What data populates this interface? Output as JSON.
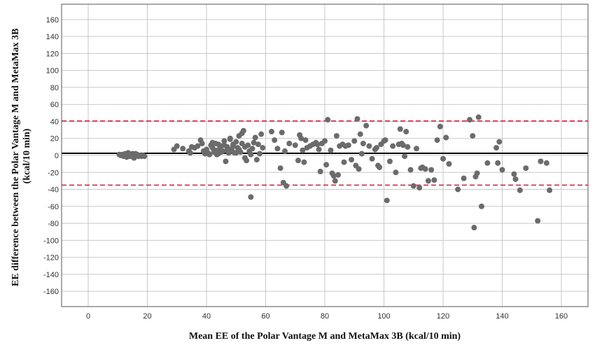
{
  "chart_data": {
    "type": "scatter",
    "title": "",
    "xlabel": "Mean EE of the Polar Vantage M and MetaMax 3B (kcal/10 min)",
    "ylabel_line1": "EE difference between the Polar Vantage M and MetaMax 3B",
    "ylabel_line2": "(kcal/10 min)",
    "xlim": [
      -9,
      169
    ],
    "ylim": [
      -178,
      178
    ],
    "xticks": [
      0,
      20,
      40,
      60,
      80,
      100,
      120,
      140,
      160
    ],
    "yticks": [
      -160,
      -140,
      -120,
      -100,
      -80,
      -60,
      -40,
      -20,
      0,
      20,
      40,
      60,
      80,
      100,
      120,
      140,
      160
    ],
    "grid": true,
    "legend": "none",
    "reference_lines": [
      {
        "kind": "mean_bias",
        "y": 2.5,
        "color": "#000000",
        "style": "solid"
      },
      {
        "kind": "upper_loa",
        "y": 40.5,
        "color": "#d6264f",
        "style": "dashed"
      },
      {
        "kind": "lower_loa",
        "y": -35,
        "color": "#d6264f",
        "style": "dashed"
      }
    ],
    "colors": {
      "points": "#6b6b6b",
      "grid": "#c8c8c8",
      "frame": "#555555"
    },
    "points": [
      [
        10.5,
        1
      ],
      [
        11,
        0
      ],
      [
        11.5,
        1
      ],
      [
        12,
        -1
      ],
      [
        12.5,
        2
      ],
      [
        13,
        0
      ],
      [
        13.5,
        3
      ],
      [
        14,
        1
      ],
      [
        14.5,
        -1
      ],
      [
        15,
        2
      ],
      [
        15.5,
        -3
      ],
      [
        16,
        0
      ],
      [
        16.5,
        1
      ],
      [
        17,
        -1
      ],
      [
        17.5,
        0
      ],
      [
        18,
        -1
      ],
      [
        18.5,
        0
      ],
      [
        19,
        -1
      ],
      [
        13,
        -2
      ],
      [
        15,
        1
      ],
      [
        16,
        2
      ],
      [
        12,
        1
      ],
      [
        14,
        -1
      ],
      [
        17,
        0
      ],
      [
        29,
        7
      ],
      [
        30,
        11
      ],
      [
        32,
        8
      ],
      [
        34,
        5
      ],
      [
        34.5,
        3
      ],
      [
        35,
        10
      ],
      [
        36,
        9
      ],
      [
        37,
        11
      ],
      [
        38,
        18
      ],
      [
        38.5,
        14
      ],
      [
        39,
        5
      ],
      [
        39.5,
        2
      ],
      [
        40,
        7
      ],
      [
        40.5,
        3
      ],
      [
        41,
        1
      ],
      [
        41.5,
        12
      ],
      [
        42,
        9
      ],
      [
        42.5,
        4
      ],
      [
        43,
        6
      ],
      [
        43.5,
        1
      ],
      [
        44,
        13
      ],
      [
        44.5,
        8
      ],
      [
        45,
        11
      ],
      [
        45.5,
        5
      ],
      [
        46,
        17
      ],
      [
        46.5,
        -7
      ],
      [
        47,
        10
      ],
      [
        47.5,
        3
      ],
      [
        48,
        19
      ],
      [
        48.5,
        7
      ],
      [
        49,
        13
      ],
      [
        49.5,
        3
      ],
      [
        50,
        16
      ],
      [
        50.5,
        9
      ],
      [
        51,
        23
      ],
      [
        51.5,
        4
      ],
      [
        52,
        26
      ],
      [
        52.5,
        29
      ],
      [
        53,
        -3
      ],
      [
        53.5,
        -6
      ],
      [
        54,
        12
      ],
      [
        54.5,
        5
      ],
      [
        55,
        -49
      ],
      [
        55.5,
        8
      ],
      [
        56,
        15
      ],
      [
        56.5,
        21
      ],
      [
        57,
        -5
      ],
      [
        57.5,
        13
      ],
      [
        58,
        2
      ],
      [
        58.5,
        25
      ],
      [
        59,
        9
      ],
      [
        44,
        2
      ],
      [
        46,
        12
      ],
      [
        48,
        20
      ],
      [
        50,
        3
      ],
      [
        52,
        14
      ],
      [
        42,
        15
      ],
      [
        47,
        6
      ],
      [
        49,
        11
      ],
      [
        53,
        10
      ],
      [
        43,
        14
      ],
      [
        45,
        4
      ],
      [
        51,
        7
      ],
      [
        55,
        1
      ],
      [
        62,
        28
      ],
      [
        63,
        18
      ],
      [
        64,
        8
      ],
      [
        65,
        -15
      ],
      [
        65.5,
        27
      ],
      [
        66,
        -32
      ],
      [
        66.5,
        5
      ],
      [
        67,
        -36
      ],
      [
        68,
        14
      ],
      [
        70,
        12
      ],
      [
        71,
        -6
      ],
      [
        71.5,
        24
      ],
      [
        72,
        20
      ],
      [
        72.5,
        6
      ],
      [
        73,
        -8
      ],
      [
        73.5,
        18
      ],
      [
        74,
        9
      ],
      [
        75,
        11
      ],
      [
        76,
        13
      ],
      [
        77,
        15
      ],
      [
        77.5,
        13
      ],
      [
        78,
        7
      ],
      [
        78.5,
        -19
      ],
      [
        79,
        14
      ],
      [
        80,
        17
      ],
      [
        80.5,
        -11
      ],
      [
        81,
        42
      ],
      [
        82,
        6
      ],
      [
        82.5,
        -21
      ],
      [
        83,
        -24
      ],
      [
        83.5,
        -30
      ],
      [
        84,
        23
      ],
      [
        84.5,
        -23
      ],
      [
        85,
        11
      ],
      [
        86,
        13
      ],
      [
        86.5,
        -8
      ],
      [
        87,
        11
      ],
      [
        88,
        12
      ],
      [
        89,
        -5
      ],
      [
        90,
        17
      ],
      [
        90.5,
        -12
      ],
      [
        91,
        43
      ],
      [
        91.5,
        -16
      ],
      [
        92,
        25
      ],
      [
        92.5,
        2
      ],
      [
        93,
        14
      ],
      [
        94,
        35
      ],
      [
        95,
        11
      ],
      [
        96,
        -4
      ],
      [
        97,
        7
      ],
      [
        97.5,
        9
      ],
      [
        98,
        -12
      ],
      [
        98.5,
        -14
      ],
      [
        99,
        13
      ],
      [
        100,
        17
      ],
      [
        100.5,
        18
      ],
      [
        101,
        -53
      ],
      [
        102,
        -7
      ],
      [
        103,
        11
      ],
      [
        104,
        -20
      ],
      [
        105,
        13
      ],
      [
        105.5,
        31
      ],
      [
        106,
        14
      ],
      [
        106.5,
        12
      ],
      [
        107,
        -1
      ],
      [
        107.5,
        28
      ],
      [
        108,
        10
      ],
      [
        109,
        -17
      ],
      [
        110,
        -36
      ],
      [
        111,
        8
      ],
      [
        112,
        -38
      ],
      [
        112.5,
        -15
      ],
      [
        113,
        -14
      ],
      [
        114,
        -16
      ],
      [
        115,
        -30
      ],
      [
        116,
        -17
      ],
      [
        117,
        -29
      ],
      [
        118,
        18
      ],
      [
        119,
        34
      ],
      [
        120,
        -4
      ],
      [
        121,
        21
      ],
      [
        122,
        -10
      ],
      [
        125,
        -40
      ],
      [
        127,
        -27
      ],
      [
        129,
        42
      ],
      [
        130,
        23
      ],
      [
        130.5,
        -85
      ],
      [
        131,
        -25
      ],
      [
        131.5,
        -21
      ],
      [
        132,
        45
      ],
      [
        133,
        -60
      ],
      [
        135,
        -9
      ],
      [
        138,
        9
      ],
      [
        138.5,
        -9
      ],
      [
        139,
        16
      ],
      [
        140,
        -17
      ],
      [
        144,
        -22
      ],
      [
        144.5,
        -28
      ],
      [
        146,
        -41
      ],
      [
        148,
        -15
      ],
      [
        152,
        -77
      ],
      [
        153,
        -7
      ],
      [
        155,
        -9
      ],
      [
        156,
        -41
      ]
    ]
  }
}
